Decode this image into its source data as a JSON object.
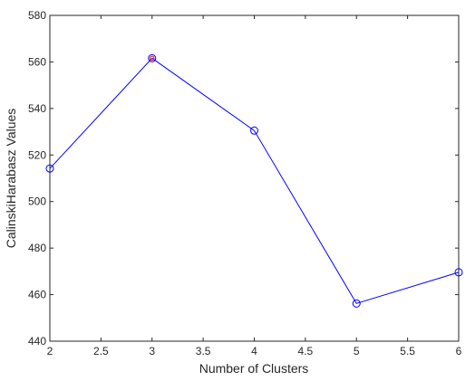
{
  "chart_data": {
    "type": "line",
    "xlabel": "Number of Clusters",
    "ylabel": "CalinskiHarabasz Values",
    "xlim": [
      2,
      6
    ],
    "ylim": [
      440,
      580
    ],
    "xticks": [
      2,
      2.5,
      3,
      3.5,
      4,
      4.5,
      5,
      5.5,
      6
    ],
    "xtick_labels": [
      "2",
      "2.5",
      "3",
      "3.5",
      "4",
      "4.5",
      "5",
      "5.5",
      "6"
    ],
    "yticks": [
      440,
      460,
      480,
      500,
      520,
      540,
      560,
      580
    ],
    "ytick_labels": [
      "440",
      "460",
      "480",
      "500",
      "520",
      "540",
      "560",
      "580"
    ],
    "grid": false,
    "series": [
      {
        "x": [
          2,
          3,
          4,
          5,
          6
        ],
        "y": [
          514.2,
          561.6,
          530.5,
          456.2,
          469.6
        ],
        "color": "#0000ff",
        "marker": "circle"
      }
    ],
    "highlight": {
      "x": 3,
      "y": 561.6,
      "color": "#ff0000"
    }
  }
}
